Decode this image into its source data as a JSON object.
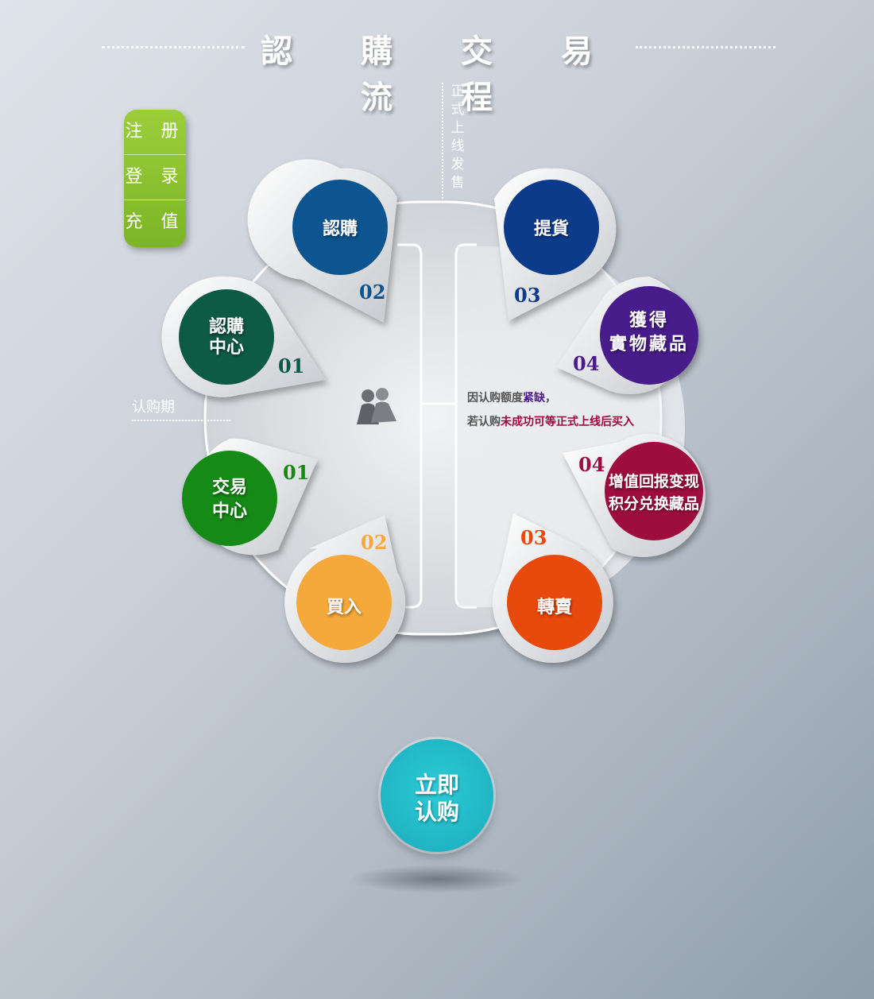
{
  "title": "認 購 交 易 流 程",
  "side_menu": {
    "register": "注 册",
    "login": "登 录",
    "recharge": "充 值"
  },
  "launch_label": "正式上线发售",
  "period_label": "认购期",
  "note": {
    "line1_prefix": "因认购额度",
    "line1_highlight": "紧缺",
    "line1_suffix": "，",
    "line2_prefix": "若认购",
    "line2_highlight": "未成功可等正式上线后买入"
  },
  "steps": {
    "subscribe_center": {
      "label1": "認購",
      "label2": "中心",
      "num": "01",
      "color": "#0b5a45"
    },
    "subscribe": {
      "label": "認購",
      "num": "02",
      "color": "#0d5590"
    },
    "pickup": {
      "label": "提貨",
      "num": "03",
      "color": "#0a3a8c"
    },
    "obtain": {
      "label1": "獲得",
      "label2": "實物藏品",
      "num": "04",
      "color": "#4a1a8c"
    },
    "trade_center": {
      "label1": "交易",
      "label2": "中心",
      "num": "01",
      "color": "#178a12"
    },
    "buy": {
      "label": "買入",
      "num": "02",
      "color": "#f6a93b"
    },
    "resell": {
      "label": "轉賣",
      "num": "03",
      "color": "#e8480e"
    },
    "appreciate": {
      "label1": "增值回报变现",
      "label2": "积分兑换藏品",
      "num": "04",
      "color": "#9e0b3e"
    }
  },
  "cta": {
    "line1": "立即",
    "line2": "认购"
  },
  "icons": {
    "center": "people-icon"
  }
}
